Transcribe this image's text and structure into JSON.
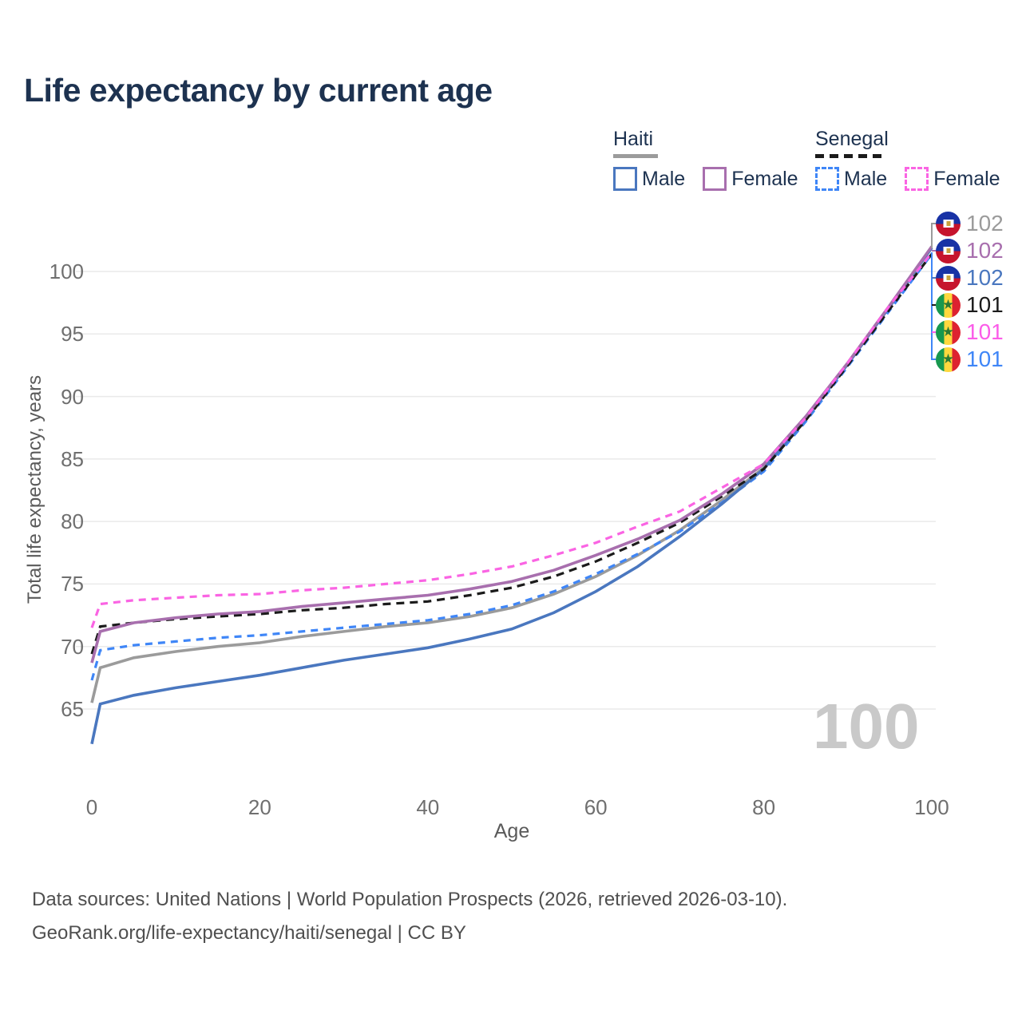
{
  "title": "Life expectancy by current age",
  "legend": {
    "groups": [
      {
        "label": "Haiti",
        "style": "solid",
        "items": [
          {
            "label": "Male",
            "series": "haiti_male"
          },
          {
            "label": "Female",
            "series": "haiti_female"
          }
        ]
      },
      {
        "label": "Senegal",
        "style": "dashed",
        "items": [
          {
            "label": "Male",
            "series": "senegal_male"
          },
          {
            "label": "Female",
            "series": "senegal_female"
          }
        ]
      }
    ]
  },
  "axes": {
    "x": {
      "title": "Age",
      "ticks": [
        0,
        20,
        40,
        60,
        80,
        100
      ],
      "range": [
        0,
        100
      ]
    },
    "y": {
      "title": "Total life expectancy, years",
      "ticks": [
        65,
        70,
        75,
        80,
        85,
        90,
        95,
        100
      ],
      "range": [
        62,
        102.5
      ],
      "grid": true
    }
  },
  "watermark": "100",
  "end_labels": [
    {
      "flag": "haiti-flag",
      "value": "102",
      "color": "#9b9b9b"
    },
    {
      "flag": "haiti-flag",
      "value": "102",
      "color": "#a86fae"
    },
    {
      "flag": "haiti-flag",
      "value": "102",
      "color": "#4a77bf"
    },
    {
      "flag": "senegal-flag",
      "value": "101",
      "color": "#1b1b1b"
    },
    {
      "flag": "senegal-flag",
      "value": "101",
      "color": "#fb5ce8"
    },
    {
      "flag": "senegal-flag",
      "value": "101",
      "color": "#3f86f7"
    }
  ],
  "footer": {
    "line1": "Data sources: United Nations | World Population Prospects (2026, retrieved 2026-03-10).",
    "line2": "GeoRank.org/life-expectancy/haiti/senegal | CC BY"
  },
  "chart_data": {
    "type": "line",
    "title": "Life expectancy by current age",
    "xlabel": "Age",
    "ylabel": "Total life expectancy, years",
    "xlim": [
      0,
      100
    ],
    "ylim": [
      62,
      102.5
    ],
    "grid": "horizontal",
    "legend_position": "top-right",
    "x": [
      0,
      1,
      5,
      10,
      15,
      20,
      25,
      30,
      35,
      40,
      45,
      50,
      55,
      60,
      65,
      70,
      75,
      80,
      85,
      90,
      95,
      100
    ],
    "series": [
      {
        "id": "haiti_total",
        "name": "Haiti (both sexes)",
        "country": "Haiti",
        "sex": "both",
        "color": "#9b9b9b",
        "dash": "solid",
        "end_label": "102",
        "values": [
          65.5,
          68.3,
          69.1,
          69.6,
          70.0,
          70.3,
          70.8,
          71.2,
          71.6,
          71.9,
          72.4,
          73.1,
          74.2,
          75.6,
          77.3,
          79.3,
          81.7,
          84.3,
          88.2,
          92.6,
          97.2,
          101.9
        ]
      },
      {
        "id": "senegal_male",
        "name": "Senegal — Male",
        "country": "Senegal",
        "sex": "male",
        "color": "#3f86f7",
        "dash": "dashed",
        "end_label": "101",
        "values": [
          67.3,
          69.7,
          70.1,
          70.4,
          70.7,
          70.9,
          71.2,
          71.5,
          71.8,
          72.1,
          72.6,
          73.3,
          74.4,
          75.8,
          77.4,
          79.2,
          81.5,
          84.0,
          88.0,
          92.4,
          96.9,
          101.4
        ]
      },
      {
        "id": "haiti_male",
        "name": "Haiti — Male",
        "country": "Haiti",
        "sex": "male",
        "color": "#4a77bf",
        "dash": "solid",
        "end_label": "102",
        "values": [
          62.2,
          65.4,
          66.1,
          66.7,
          67.2,
          67.7,
          68.3,
          68.9,
          69.4,
          69.9,
          70.6,
          71.4,
          72.7,
          74.4,
          76.4,
          78.8,
          81.4,
          84.2,
          88.2,
          92.6,
          97.2,
          101.9
        ]
      },
      {
        "id": "senegal_total",
        "name": "Senegal (both sexes)",
        "country": "Senegal",
        "sex": "both",
        "color": "#1b1b1b",
        "dash": "dashed",
        "end_label": "101",
        "values": [
          69.4,
          71.6,
          71.9,
          72.2,
          72.4,
          72.6,
          72.9,
          73.1,
          73.4,
          73.6,
          74.1,
          74.7,
          75.6,
          76.8,
          78.3,
          79.9,
          82.0,
          84.2,
          88.1,
          92.5,
          97.0,
          101.4
        ]
      },
      {
        "id": "haiti_female",
        "name": "Haiti — Female",
        "country": "Haiti",
        "sex": "female",
        "color": "#a86fae",
        "dash": "solid",
        "end_label": "102",
        "values": [
          68.7,
          71.2,
          71.9,
          72.3,
          72.6,
          72.8,
          73.2,
          73.5,
          73.8,
          74.1,
          74.6,
          75.2,
          76.1,
          77.3,
          78.6,
          80.1,
          82.2,
          84.6,
          88.4,
          92.7,
          97.3,
          102.0
        ]
      },
      {
        "id": "senegal_female",
        "name": "Senegal — Female",
        "country": "Senegal",
        "sex": "female",
        "color": "#fa64e3",
        "dash": "dashed",
        "end_label": "101",
        "values": [
          71.5,
          73.4,
          73.7,
          73.9,
          74.1,
          74.2,
          74.5,
          74.7,
          75.0,
          75.3,
          75.8,
          76.4,
          77.3,
          78.3,
          79.6,
          80.8,
          82.7,
          84.6,
          88.3,
          92.7,
          97.3,
          101.5
        ]
      }
    ]
  }
}
